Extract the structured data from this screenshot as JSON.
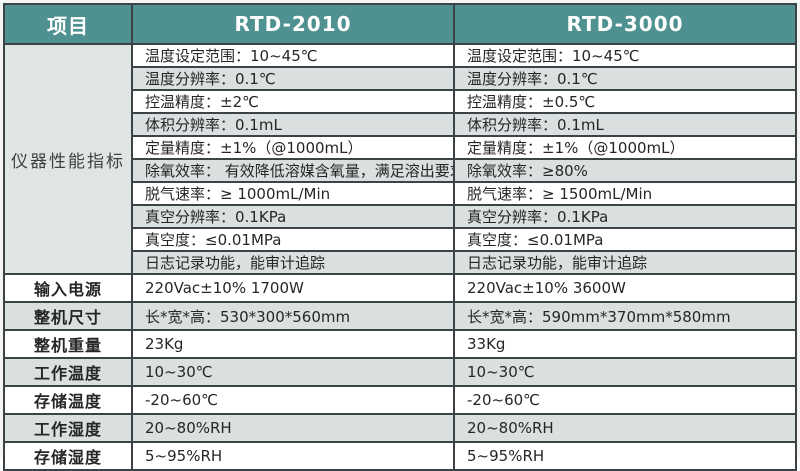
{
  "colors": {
    "header_bg": "#4f9190",
    "header_text": "#ffffff",
    "stripe_row_bg": "#d9e0df",
    "group_cell_bg": "#dfe5e3",
    "border": "#3c4346",
    "body_text": "#262626"
  },
  "table": {
    "header": {
      "item_label": "项目",
      "col_a": "RTD-2010",
      "col_b": "RTD-3000"
    },
    "performance_group_label": "仪器性能指标",
    "performance_rows": [
      {
        "rtd2010": "温度设定范围：10~45℃",
        "rtd3000": "温度设定范围：10~45℃"
      },
      {
        "rtd2010": "温度分辨率：0.1℃",
        "rtd3000": "温度分辨率：0.1℃"
      },
      {
        "rtd2010": "控温精度：±2℃",
        "rtd3000": "控温精度：±0.5℃"
      },
      {
        "rtd2010": "体积分辨率：0.1mL",
        "rtd3000": "体积分辨率：0.1mL"
      },
      {
        "rtd2010": "定量精度：±1%（@1000mL）",
        "rtd3000": "定量精度：±1%（@1000mL）"
      },
      {
        "rtd2010": "除氧效率： 有效降低溶媒含氧量，满足溶出要求",
        "rtd3000": "除氧效率：≥80%"
      },
      {
        "rtd2010": "脱气速率：≥ 1000mL/Min",
        "rtd3000": "脱气速率：≥ 1500mL/Min"
      },
      {
        "rtd2010": "真空分辨率：0.1KPa",
        "rtd3000": "真空分辨率：0.1KPa"
      },
      {
        "rtd2010": "真空度：≤0.01MPa",
        "rtd3000": "真空度：≤0.01MPa"
      },
      {
        "rtd2010": "日志记录功能，能审计追踪",
        "rtd3000": "日志记录功能，能审计追踪"
      }
    ],
    "spec_rows": [
      {
        "label": "输入电源",
        "rtd2010": "220Vac±10% 1700W",
        "rtd3000": "220Vac±10% 3600W"
      },
      {
        "label": "整机尺寸",
        "rtd2010": "长*宽*高：530*300*560mm",
        "rtd3000": "长*宽*高：590mm*370mm*580mm"
      },
      {
        "label": "整机重量",
        "rtd2010": "23Kg",
        "rtd3000": "33Kg"
      },
      {
        "label": "工作温度",
        "rtd2010": "10~30℃",
        "rtd3000": "10~30℃"
      },
      {
        "label": "存储温度",
        "rtd2010": "-20~60℃",
        "rtd3000": "-20~60℃"
      },
      {
        "label": "工作湿度",
        "rtd2010": "20~80%RH",
        "rtd3000": "20~80%RH"
      },
      {
        "label": "存储湿度",
        "rtd2010": "5~95%RH",
        "rtd3000": "5~95%RH"
      }
    ]
  }
}
